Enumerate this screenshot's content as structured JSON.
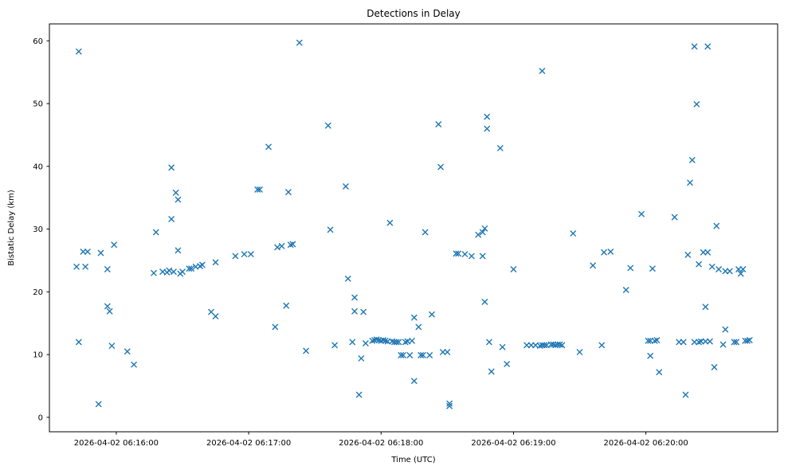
{
  "chart_data": {
    "type": "scatter",
    "title": "Detections in Delay",
    "xlabel": "Time (UTC)",
    "ylabel": "Bistatic Delay (km)",
    "marker": "x",
    "marker_color": "#1f77b4",
    "x_unit": "seconds after 2026-04-02 06:16:00 UTC",
    "xlim": [
      -30.3,
      299.7
    ],
    "ylim": [
      -2.3,
      62.7
    ],
    "x_ticks": [
      {
        "value": 0,
        "label": "2026-04-02 06:16:00"
      },
      {
        "value": 60,
        "label": "2026-04-02 06:17:00"
      },
      {
        "value": 120,
        "label": "2026-04-02 06:18:00"
      },
      {
        "value": 180,
        "label": "2026-04-02 06:19:00"
      },
      {
        "value": 240,
        "label": "2026-04-02 06:20:00"
      }
    ],
    "y_ticks": [
      0,
      10,
      20,
      30,
      40,
      50,
      60
    ],
    "points": [
      [
        -18,
        24.0
      ],
      [
        -17,
        58.3
      ],
      [
        -17,
        12.0
      ],
      [
        -15,
        26.4
      ],
      [
        -14,
        24.0
      ],
      [
        -13,
        26.4
      ],
      [
        -8,
        2.1
      ],
      [
        -7,
        26.2
      ],
      [
        -4,
        23.6
      ],
      [
        -4,
        17.7
      ],
      [
        -3,
        16.9
      ],
      [
        -2,
        11.4
      ],
      [
        -1,
        27.5
      ],
      [
        5,
        10.5
      ],
      [
        8,
        8.4
      ],
      [
        17,
        23.0
      ],
      [
        18,
        29.5
      ],
      [
        21,
        23.2
      ],
      [
        23,
        23.1
      ],
      [
        24,
        23.4
      ],
      [
        25,
        39.8
      ],
      [
        25,
        31.6
      ],
      [
        26,
        23.2
      ],
      [
        27,
        35.8
      ],
      [
        28,
        34.7
      ],
      [
        28,
        26.6
      ],
      [
        29,
        22.9
      ],
      [
        30,
        23.2
      ],
      [
        33,
        23.7
      ],
      [
        34,
        23.7
      ],
      [
        36,
        24.0
      ],
      [
        38,
        24.1
      ],
      [
        39,
        24.3
      ],
      [
        43,
        16.8
      ],
      [
        45,
        16.1
      ],
      [
        45,
        24.7
      ],
      [
        54,
        25.7
      ],
      [
        58,
        26.0
      ],
      [
        61,
        26.0
      ],
      [
        64,
        36.3
      ],
      [
        65,
        36.3
      ],
      [
        69,
        43.1
      ],
      [
        72,
        14.4
      ],
      [
        73,
        27.1
      ],
      [
        75,
        27.3
      ],
      [
        77,
        17.8
      ],
      [
        78,
        35.9
      ],
      [
        79,
        27.5
      ],
      [
        80,
        27.6
      ],
      [
        83,
        59.7
      ],
      [
        86,
        10.6
      ],
      [
        96,
        46.5
      ],
      [
        97,
        29.9
      ],
      [
        99,
        11.5
      ],
      [
        104,
        36.8
      ],
      [
        105,
        22.1
      ],
      [
        107,
        12.0
      ],
      [
        108,
        19.1
      ],
      [
        108,
        16.9
      ],
      [
        110,
        3.6
      ],
      [
        111,
        9.4
      ],
      [
        112,
        16.8
      ],
      [
        113,
        11.8
      ],
      [
        116,
        12.2
      ],
      [
        117,
        12.3
      ],
      [
        118,
        12.4
      ],
      [
        119,
        12.3
      ],
      [
        120,
        12.2
      ],
      [
        121,
        12.3
      ],
      [
        122,
        12.2
      ],
      [
        123,
        12.1
      ],
      [
        124,
        31.0
      ],
      [
        125,
        12.1
      ],
      [
        126,
        12.0
      ],
      [
        127,
        12.0
      ],
      [
        128,
        12.0
      ],
      [
        129,
        9.9
      ],
      [
        130,
        9.9
      ],
      [
        131,
        12.0
      ],
      [
        132,
        12.1
      ],
      [
        133,
        9.9
      ],
      [
        134,
        12.2
      ],
      [
        135,
        15.9
      ],
      [
        135,
        5.8
      ],
      [
        137,
        14.4
      ],
      [
        138,
        9.9
      ],
      [
        139,
        9.9
      ],
      [
        140,
        29.5
      ],
      [
        142,
        9.9
      ],
      [
        143,
        16.4
      ],
      [
        146,
        46.7
      ],
      [
        147,
        39.9
      ],
      [
        148,
        10.4
      ],
      [
        150,
        10.4
      ],
      [
        151,
        2.2
      ],
      [
        151,
        1.8
      ],
      [
        154,
        26.1
      ],
      [
        155,
        26.1
      ],
      [
        158,
        26.0
      ],
      [
        161,
        25.7
      ],
      [
        164,
        29.1
      ],
      [
        166,
        25.7
      ],
      [
        166,
        29.5
      ],
      [
        167,
        30.1
      ],
      [
        167,
        18.4
      ],
      [
        168,
        47.9
      ],
      [
        168,
        46.0
      ],
      [
        169,
        12.0
      ],
      [
        170,
        7.3
      ],
      [
        174,
        42.9
      ],
      [
        175,
        11.2
      ],
      [
        177,
        8.5
      ],
      [
        180,
        23.6
      ],
      [
        186,
        11.5
      ],
      [
        188,
        11.5
      ],
      [
        190,
        11.5
      ],
      [
        192,
        11.4
      ],
      [
        193,
        55.2
      ],
      [
        193,
        11.5
      ],
      [
        194,
        11.5
      ],
      [
        195,
        11.5
      ],
      [
        197,
        11.6
      ],
      [
        198,
        11.6
      ],
      [
        199,
        11.5
      ],
      [
        200,
        11.6
      ],
      [
        201,
        11.6
      ],
      [
        202,
        11.5
      ],
      [
        207,
        29.3
      ],
      [
        210,
        10.4
      ],
      [
        216,
        24.2
      ],
      [
        220,
        11.5
      ],
      [
        221,
        26.3
      ],
      [
        224,
        26.4
      ],
      [
        231,
        20.3
      ],
      [
        233,
        23.8
      ],
      [
        238,
        32.4
      ],
      [
        241,
        12.2
      ],
      [
        242,
        12.2
      ],
      [
        242,
        9.8
      ],
      [
        243,
        23.7
      ],
      [
        244,
        12.2
      ],
      [
        245,
        12.3
      ],
      [
        246,
        7.2
      ],
      [
        253,
        31.9
      ],
      [
        255,
        12.0
      ],
      [
        257,
        12.0
      ],
      [
        258,
        3.6
      ],
      [
        259,
        25.9
      ],
      [
        260,
        37.4
      ],
      [
        261,
        41.0
      ],
      [
        262,
        59.1
      ],
      [
        262,
        12.0
      ],
      [
        263,
        49.9
      ],
      [
        264,
        24.4
      ],
      [
        264,
        12.0
      ],
      [
        265,
        12.1
      ],
      [
        266,
        26.3
      ],
      [
        267,
        17.6
      ],
      [
        267,
        12.1
      ],
      [
        268,
        26.3
      ],
      [
        268,
        59.1
      ],
      [
        269,
        12.1
      ],
      [
        270,
        24.0
      ],
      [
        271,
        8.0
      ],
      [
        272,
        30.5
      ],
      [
        273,
        23.6
      ],
      [
        275,
        11.6
      ],
      [
        276,
        14.0
      ],
      [
        276,
        23.3
      ],
      [
        278,
        23.3
      ],
      [
        280,
        12.0
      ],
      [
        281,
        12.0
      ],
      [
        282,
        23.6
      ],
      [
        283,
        22.9
      ],
      [
        284,
        23.6
      ],
      [
        285,
        12.2
      ],
      [
        286,
        12.2
      ],
      [
        287,
        12.3
      ]
    ]
  }
}
